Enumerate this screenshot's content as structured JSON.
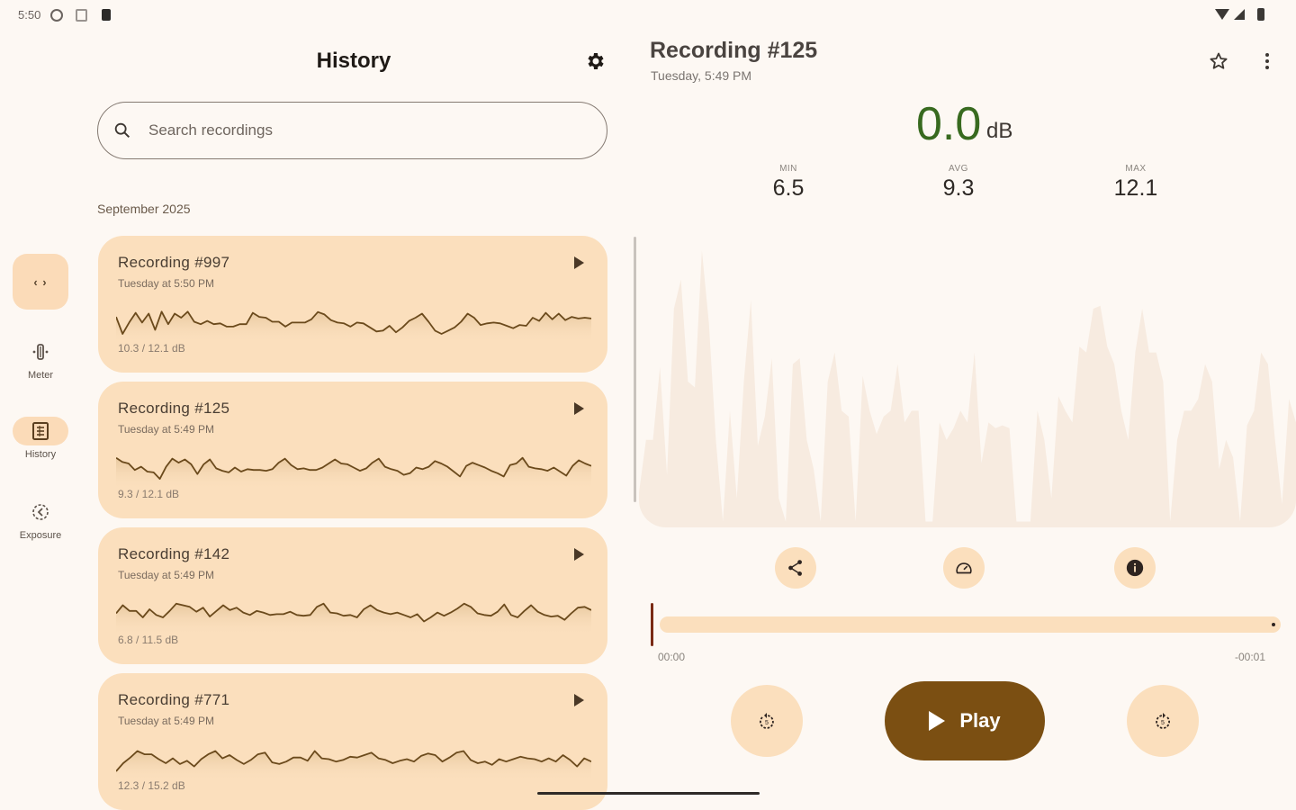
{
  "status_bar": {
    "time": "5:50",
    "icons": [
      "vpn-icon",
      "screen-icon",
      "sd-card-icon",
      "wifi-icon",
      "signal-icon",
      "battery-icon"
    ]
  },
  "nav_rail": {
    "fab_icon": "code-brackets-icon",
    "fab_glyph": "‹ ›",
    "items": [
      {
        "label": "Meter",
        "icon": "meter-icon",
        "active": false
      },
      {
        "label": "History",
        "icon": "history-icon",
        "active": true
      },
      {
        "label": "Exposure",
        "icon": "exposure-icon",
        "active": false
      }
    ]
  },
  "history": {
    "title": "History",
    "settings_icon": "gear-icon",
    "search": {
      "placeholder": "Search recordings",
      "value": ""
    },
    "section_label": "September 2025",
    "recordings": [
      {
        "title": "Recording #997",
        "subtitle": "Tuesday at 5:50 PM",
        "range": "10.3 / 12.1 dB",
        "wave": [
          62,
          20,
          48,
          72,
          48,
          70,
          30,
          75,
          44,
          70,
          60,
          75,
          50,
          44,
          52,
          44,
          46,
          38,
          38,
          44,
          44,
          72,
          62,
          60,
          50,
          50,
          38,
          48,
          48,
          48,
          56,
          74,
          68,
          54,
          48,
          46,
          38,
          48,
          46,
          36,
          26,
          28,
          40,
          24,
          36,
          52,
          60,
          70,
          50,
          28,
          20,
          28,
          36,
          50,
          70,
          60,
          42,
          46,
          48,
          46,
          40,
          34,
          42,
          40,
          60,
          52,
          72,
          56,
          70,
          54,
          62,
          58,
          60,
          58
        ]
      },
      {
        "title": "Recording #125",
        "subtitle": "Tuesday at 5:49 PM",
        "range": "9.3 / 12.1 dB",
        "wave": [
          74,
          64,
          60,
          44,
          52,
          40,
          38,
          22,
          52,
          72,
          62,
          70,
          58,
          34,
          58,
          70,
          48,
          42,
          38,
          50,
          40,
          46,
          44,
          44,
          42,
          46,
          62,
          72,
          56,
          46,
          48,
          44,
          44,
          50,
          60,
          70,
          60,
          58,
          50,
          42,
          48,
          62,
          72,
          52,
          46,
          42,
          32,
          36,
          50,
          46,
          52,
          66,
          60,
          52,
          40,
          28,
          54,
          62,
          56,
          50,
          42,
          36,
          28,
          56,
          60,
          74,
          52,
          48,
          46,
          42,
          50,
          40,
          30,
          54,
          68,
          60,
          54
        ]
      },
      {
        "title": "Recording #142",
        "subtitle": "Tuesday at 5:49 PM",
        "range": "6.8 / 11.5 dB",
        "wave": [
          50,
          70,
          56,
          56,
          40,
          60,
          46,
          40,
          56,
          74,
          70,
          66,
          54,
          64,
          42,
          56,
          70,
          58,
          64,
          52,
          46,
          56,
          52,
          46,
          48,
          48,
          54,
          46,
          44,
          46,
          66,
          74,
          52,
          50,
          44,
          46,
          40,
          60,
          70,
          58,
          52,
          48,
          52,
          46,
          40,
          48,
          30,
          40,
          52,
          44,
          52,
          62,
          74,
          66,
          50,
          46,
          44,
          54,
          72,
          46,
          40,
          56,
          70,
          54,
          46,
          42,
          44,
          34,
          50,
          64,
          66,
          58
        ]
      },
      {
        "title": "Recording #771",
        "subtitle": "Tuesday at 5:49 PM",
        "range": "12.3 / 15.2 dB",
        "wave": [
          20,
          40,
          54,
          70,
          62,
          62,
          50,
          40,
          52,
          38,
          46,
          32,
          50,
          62,
          70,
          52,
          60,
          48,
          38,
          48,
          62,
          66,
          42,
          38,
          44,
          54,
          54,
          46,
          70,
          52,
          50,
          44,
          48,
          56,
          54,
          60,
          66,
          52,
          48,
          40,
          46,
          50,
          44,
          58,
          64,
          60,
          44,
          54,
          66,
          70,
          48,
          40,
          44,
          36,
          50,
          44,
          50,
          56,
          52,
          50,
          44,
          52,
          44,
          60,
          48,
          32,
          52,
          44
        ]
      }
    ]
  },
  "detail": {
    "title": "Recording #125",
    "subtitle": "Tuesday, 5:49 PM",
    "star_icon": "star-outline-icon",
    "more_icon": "more-vert-icon",
    "current_db": "0.0",
    "db_unit": "dB",
    "stats": {
      "min": {
        "label": "MIN",
        "value": "6.5"
      },
      "avg": {
        "label": "AVG",
        "value": "9.3"
      },
      "max": {
        "label": "MAX",
        "value": "12.1"
      }
    },
    "big_wave": [
      12,
      30,
      30,
      55,
      18,
      75,
      85,
      50,
      48,
      95,
      70,
      30,
      2,
      40,
      10,
      50,
      78,
      28,
      38,
      58,
      10,
      2,
      56,
      58,
      30,
      20,
      2,
      50,
      60,
      40,
      38,
      2,
      52,
      40,
      32,
      38,
      40,
      56,
      36,
      40,
      40,
      2,
      2,
      36,
      30,
      34,
      40,
      36,
      60,
      22,
      36,
      34,
      35,
      34,
      2,
      2,
      2,
      40,
      30,
      10,
      45,
      40,
      36,
      62,
      60,
      75,
      76,
      62,
      56,
      40,
      30,
      60,
      75,
      60,
      60,
      50,
      2,
      30,
      40,
      40,
      44,
      56,
      50,
      20,
      30,
      24,
      2,
      35,
      40,
      60,
      56,
      30,
      8,
      44,
      36
    ],
    "actions": [
      {
        "name": "share",
        "icon": "share-icon"
      },
      {
        "name": "speed",
        "icon": "speedometer-icon"
      },
      {
        "name": "info",
        "icon": "info-icon"
      }
    ],
    "seek": {
      "start": "00:00",
      "end": "-00:01",
      "progress": 0
    },
    "controls": {
      "rewind_icon": "replay-5-icon",
      "play_label": "Play",
      "play_icon": "play-icon",
      "forward_icon": "forward-5-icon"
    }
  },
  "colors": {
    "background": "#fdf8f3",
    "card": "#fbdfbd",
    "accent_brown": "#7b4f12",
    "db_green": "#386a1f",
    "wave_stroke": "#6b4a1c",
    "big_wave_fill": "#f7ebe0",
    "seek_marker": "#7a2a14"
  }
}
